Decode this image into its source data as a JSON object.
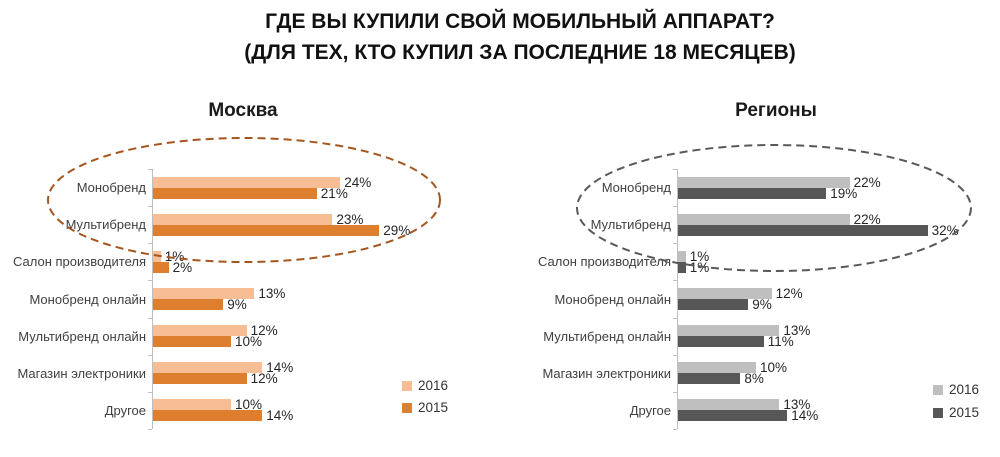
{
  "title": {
    "line1": "ГДЕ ВЫ КУПИЛИ СВОЙ МОБИЛЬНЫЙ АППАРАТ?",
    "line2": "(ДЛЯ ТЕХ, КТО КУПИЛ ЗА ПОСЛЕДНИЕ 18 МЕСЯЦЕВ)"
  },
  "chart_data": [
    {
      "type": "bar",
      "orientation": "horizontal",
      "title": "Москва",
      "categories": [
        "Монобренд",
        "Мультибренд",
        "Салон производителя",
        "Монобренд онлайн",
        "Мультибренд онлайн",
        "Магазин электроники",
        "Другое"
      ],
      "series": [
        {
          "name": "2016",
          "color": "#F7BE96",
          "values": [
            24,
            23,
            1,
            13,
            12,
            14,
            10
          ]
        },
        {
          "name": "2015",
          "color": "#DE7F30",
          "values": [
            21,
            29,
            2,
            9,
            10,
            12,
            14
          ]
        }
      ],
      "value_suffix": "%",
      "xlim": [
        0,
        35
      ],
      "grid": false,
      "legend_position": "right",
      "annotation": {
        "shape": "dashed-ellipse",
        "color": "#A5561E",
        "highlights": [
          "Монобренд",
          "Мультибренд"
        ]
      }
    },
    {
      "type": "bar",
      "orientation": "horizontal",
      "title": "Регионы",
      "categories": [
        "Монобренд",
        "Мультибренд",
        "Салон производителя",
        "Монобренд онлайн",
        "Мультибренд онлайн",
        "Магазин электроники",
        "Другое"
      ],
      "series": [
        {
          "name": "2016",
          "color": "#BFBFBF",
          "values": [
            22,
            22,
            1,
            12,
            13,
            10,
            13
          ]
        },
        {
          "name": "2015",
          "color": "#575757",
          "values": [
            19,
            32,
            1,
            9,
            11,
            8,
            14
          ]
        }
      ],
      "value_suffix": "%",
      "xlim": [
        0,
        35
      ],
      "grid": false,
      "legend_position": "right",
      "annotation": {
        "shape": "dashed-ellipse",
        "color": "#595959",
        "highlights": [
          "Монобренд",
          "Мультибренд"
        ]
      }
    }
  ]
}
